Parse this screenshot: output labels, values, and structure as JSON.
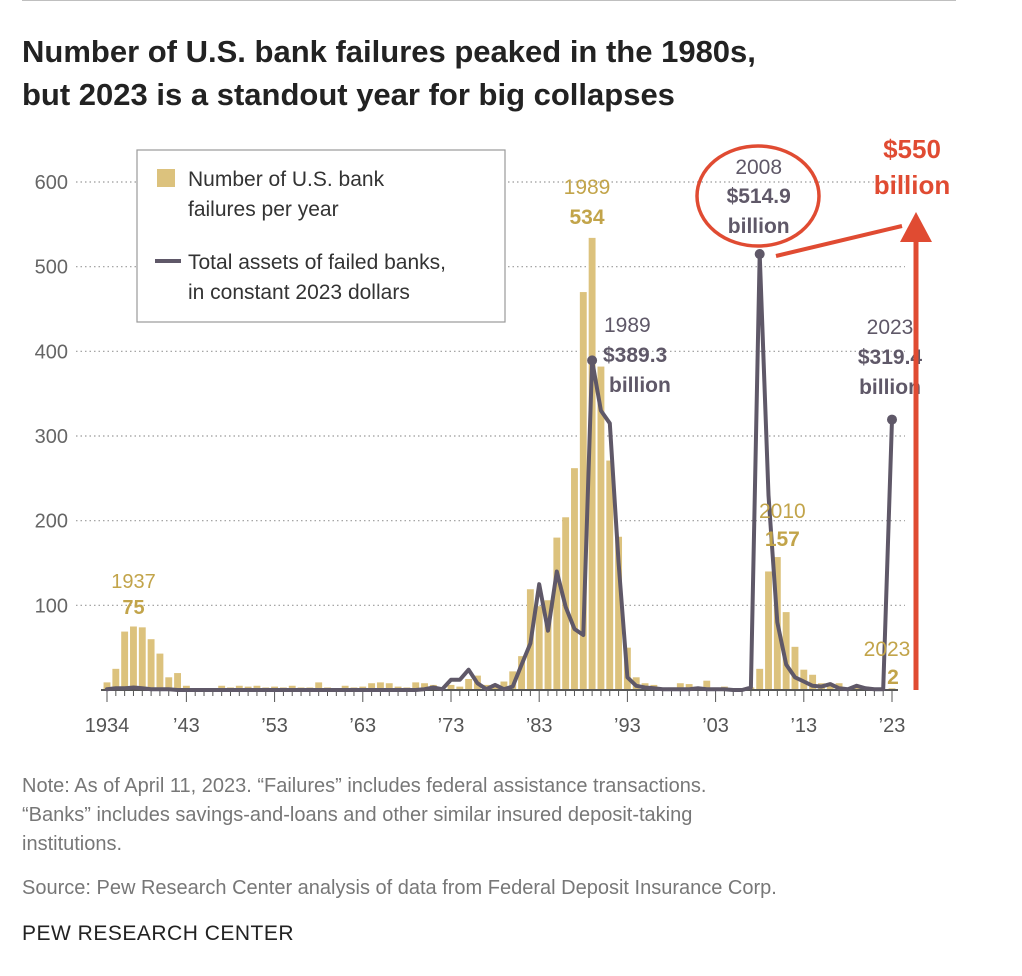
{
  "title_line1": "Number of U.S. bank failures peaked in the 1980s,",
  "title_line2": "but 2023 is a standout year for big collapses",
  "note_line1": "Note: As of April 11, 2023. “Failures” includes federal assistance transactions.",
  "note_line2": "“Banks” includes savings-and-loans and other similar insured deposit-taking",
  "note_line3": "institutions.",
  "source": "Source: Pew Research Center analysis of data from Federal Deposit Insurance Corp.",
  "org": "PEW RESEARCH CENTER",
  "colors": {
    "bar": "#dcc27d",
    "line": "#5f5868",
    "bar_label": "#c2a44a",
    "gridline": "#9a9a9a",
    "axis": "#555555",
    "highlight": "#e04b32"
  },
  "chart_data": {
    "type": "bar",
    "x_range": [
      1934,
      2023
    ],
    "ylim": [
      0,
      600
    ],
    "y_ticks": [
      "100",
      "200",
      "300",
      "400",
      "500",
      "600"
    ],
    "x_tick_labels": [
      {
        "year": 1934,
        "label": "1934"
      },
      {
        "year": 1943,
        "label": "’43"
      },
      {
        "year": 1953,
        "label": "’53"
      },
      {
        "year": 1963,
        "label": "’63"
      },
      {
        "year": 1973,
        "label": "’73"
      },
      {
        "year": 1983,
        "label": "’83"
      },
      {
        "year": 1993,
        "label": "’93"
      },
      {
        "year": 2003,
        "label": "’03"
      },
      {
        "year": 2013,
        "label": "’13"
      },
      {
        "year": 2023,
        "label": "’23"
      }
    ],
    "legend": {
      "bar_label_line1": "Number of U.S. bank",
      "bar_label_line2": "failures per year",
      "line_label_line1": "Total assets of failed banks,",
      "line_label_line2": "in constant 2023 dollars"
    },
    "series": [
      {
        "name": "Number of U.S. bank failures per year",
        "type": "bar",
        "years": [
          1934,
          1935,
          1936,
          1937,
          1938,
          1939,
          1940,
          1941,
          1942,
          1943,
          1944,
          1945,
          1946,
          1947,
          1948,
          1949,
          1950,
          1951,
          1952,
          1953,
          1954,
          1955,
          1956,
          1957,
          1958,
          1959,
          1960,
          1961,
          1962,
          1963,
          1964,
          1965,
          1966,
          1967,
          1968,
          1969,
          1970,
          1971,
          1972,
          1973,
          1974,
          1975,
          1976,
          1977,
          1978,
          1979,
          1980,
          1981,
          1982,
          1983,
          1984,
          1985,
          1986,
          1987,
          1988,
          1989,
          1990,
          1991,
          1992,
          1993,
          1994,
          1995,
          1996,
          1997,
          1998,
          1999,
          2000,
          2001,
          2002,
          2003,
          2004,
          2005,
          2006,
          2007,
          2008,
          2009,
          2010,
          2011,
          2012,
          2013,
          2014,
          2015,
          2016,
          2017,
          2018,
          2019,
          2020,
          2021,
          2022,
          2023
        ],
        "values": [
          9,
          25,
          69,
          75,
          74,
          60,
          43,
          15,
          20,
          5,
          2,
          1,
          1,
          5,
          3,
          5,
          4,
          5,
          3,
          4,
          3,
          5,
          3,
          3,
          9,
          3,
          1,
          5,
          3,
          4,
          8,
          9,
          8,
          4,
          3,
          9,
          8,
          6,
          1,
          6,
          4,
          13,
          17,
          6,
          7,
          10,
          22,
          40,
          119,
          99,
          106,
          180,
          204,
          262,
          470,
          534,
          382,
          271,
          181,
          50,
          15,
          8,
          6,
          1,
          3,
          8,
          7,
          4,
          11,
          3,
          4,
          0,
          0,
          3,
          25,
          140,
          157,
          92,
          51,
          24,
          18,
          8,
          5,
          8,
          0,
          4,
          4,
          0,
          0,
          2
        ]
      },
      {
        "name": "Total assets of failed banks, in constant 2023 dollars",
        "type": "line",
        "years": [
          1934,
          1935,
          1936,
          1937,
          1938,
          1939,
          1940,
          1941,
          1942,
          1943,
          1944,
          1945,
          1946,
          1947,
          1948,
          1949,
          1950,
          1951,
          1952,
          1953,
          1954,
          1955,
          1956,
          1957,
          1958,
          1959,
          1960,
          1961,
          1962,
          1963,
          1964,
          1965,
          1966,
          1967,
          1968,
          1969,
          1970,
          1971,
          1972,
          1973,
          1974,
          1975,
          1976,
          1977,
          1978,
          1979,
          1980,
          1981,
          1982,
          1983,
          1984,
          1985,
          1986,
          1987,
          1988,
          1989,
          1990,
          1991,
          1992,
          1993,
          1994,
          1995,
          1996,
          1997,
          1998,
          1999,
          2000,
          2001,
          2002,
          2003,
          2004,
          2005,
          2006,
          2007,
          2008,
          2009,
          2010,
          2011,
          2012,
          2013,
          2014,
          2015,
          2016,
          2017,
          2018,
          2019,
          2020,
          2021,
          2022,
          2023
        ],
        "values": [
          1,
          2,
          2,
          3,
          2,
          1,
          1,
          1,
          0,
          0,
          0,
          0,
          0,
          0,
          0,
          0,
          0,
          0,
          0,
          0,
          0,
          0,
          0,
          0,
          0,
          0,
          0,
          0,
          0,
          0,
          0,
          0,
          0,
          0,
          0,
          0,
          1,
          3,
          1,
          12,
          12,
          24,
          8,
          1,
          6,
          1,
          4,
          30,
          55,
          125,
          70,
          140,
          98,
          72,
          65,
          389.3,
          330,
          315,
          150,
          15,
          5,
          3,
          2,
          1,
          1,
          1,
          1,
          2,
          1,
          1,
          1,
          0,
          0,
          3,
          514.9,
          230,
          80,
          30,
          15,
          10,
          5,
          4,
          7,
          2,
          1,
          5,
          2,
          1,
          1,
          319.4
        ]
      }
    ],
    "annotations": {
      "y1937": "1937",
      "v1937": "75",
      "bar1989_year": "1989",
      "bar1989_value": "534",
      "line1989_year": "1989",
      "line1989_value": "$389.3",
      "line1989_unit": "billion",
      "line2008_year": "2008",
      "line2008_value": "$514.9",
      "line2008_unit": "billion",
      "bar2010_year": "2010",
      "bar2010_value": "157",
      "line2023_year": "2023",
      "line2023_value": "$319.4",
      "line2023_unit": "billion",
      "bar2023_year": "2023",
      "bar2023_value": "2",
      "callout_value": "$550",
      "callout_unit": "billion"
    }
  }
}
